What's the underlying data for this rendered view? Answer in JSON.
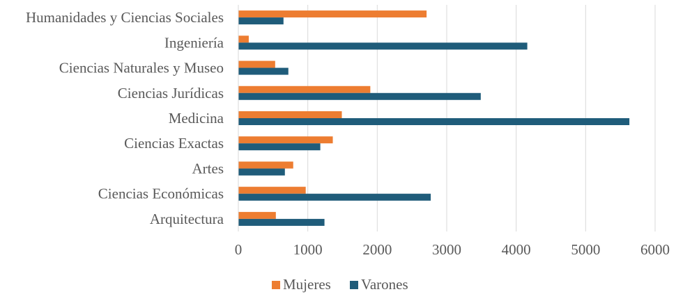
{
  "chart_data": {
    "type": "bar",
    "orientation": "horizontal",
    "title": "",
    "xlabel": "",
    "ylabel": "",
    "categories": [
      "Humanidades y Ciencias Sociales",
      "Ingeniería",
      "Ciencias Naturales y Museo",
      "Ciencias Jurídicas",
      "Medicina",
      "Ciencias Exactas",
      "Artes",
      "Ciencias Económicas",
      "Arquitectura"
    ],
    "series": [
      {
        "name": "Mujeres",
        "color": "#ED7D31",
        "values": [
          2710,
          150,
          530,
          1900,
          1490,
          1360,
          790,
          970,
          540
        ]
      },
      {
        "name": "Varones",
        "color": "#1F5C7A",
        "values": [
          650,
          4160,
          720,
          3490,
          5630,
          1180,
          670,
          2770,
          1240
        ]
      }
    ],
    "xlim": [
      0,
      6000
    ],
    "xticks": [
      0,
      1000,
      2000,
      3000,
      4000,
      5000,
      6000
    ],
    "grid": true,
    "legend_position": "bottom"
  }
}
